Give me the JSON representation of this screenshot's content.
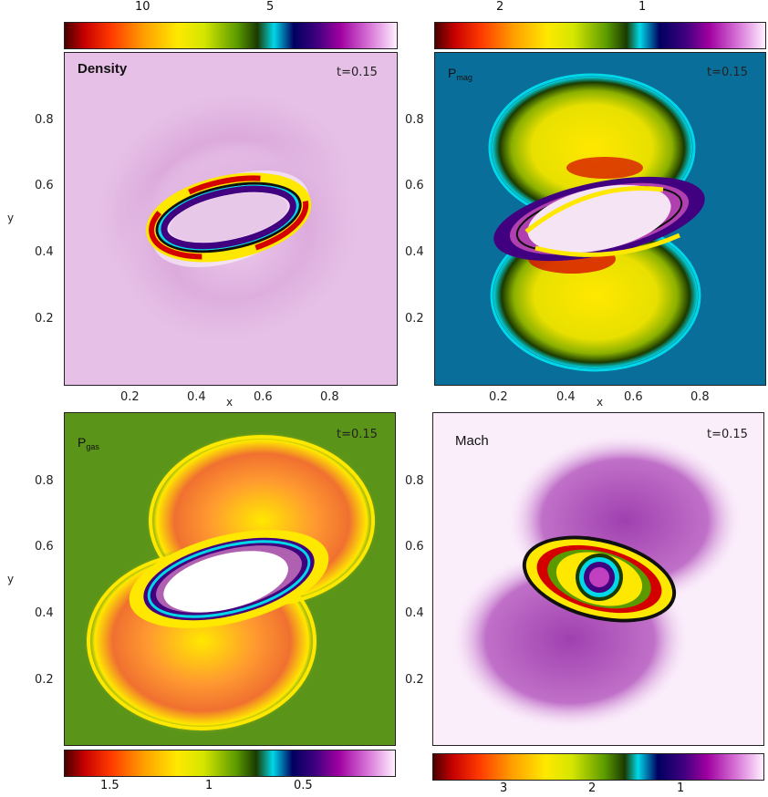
{
  "colorbars": {
    "density": {
      "labels": [
        "10",
        "5"
      ]
    },
    "pmag": {
      "labels": [
        "2",
        "1"
      ]
    },
    "pgas": {
      "labels": [
        "1.5",
        "1",
        "0.5"
      ]
    },
    "mach": {
      "labels": [
        "3",
        "2",
        "1"
      ]
    }
  },
  "panels": {
    "density": {
      "title": "Density",
      "time": "t=0.15"
    },
    "pmag": {
      "title_main": "P",
      "title_sub": "mag",
      "time": "t=0.15"
    },
    "pgas": {
      "title_main": "P",
      "title_sub": "gas",
      "time": "t=0.15"
    },
    "mach": {
      "title": "Mach",
      "time": "t=0.15"
    }
  },
  "axes": {
    "xlabel": "x",
    "ylabel": "y",
    "xticks": [
      "0.2",
      "0.4",
      "0.6",
      "0.8"
    ],
    "yticks": [
      "0.8",
      "0.6",
      "0.4",
      "0.2"
    ]
  },
  "colors": {
    "density_bg": "#e6c0e6",
    "pmag_bg": "#0a6e9a",
    "pgas_bg": "#5a9418",
    "mach_bg": "#fbeefb"
  }
}
